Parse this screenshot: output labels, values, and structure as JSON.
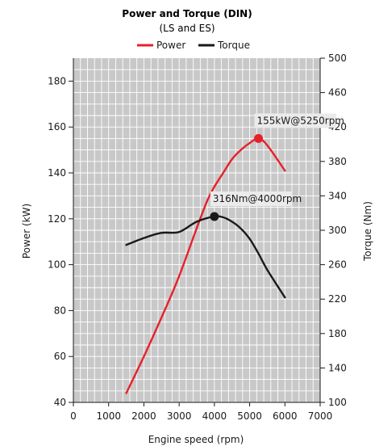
{
  "chart_data": {
    "type": "line",
    "title": "Power and Torque (DIN)",
    "subtitle": "(LS and ES)",
    "xlabel": "Engine speed (rpm)",
    "ylabel_left": "Power (kW)",
    "ylabel_right": "Torque (Nm)",
    "xlim": [
      0,
      7000
    ],
    "ylim_left": [
      40,
      190
    ],
    "ylim_right": [
      100,
      500
    ],
    "x_ticks": [
      0,
      1000,
      2000,
      3000,
      4000,
      5000,
      6000,
      7000
    ],
    "y_left_ticks": [
      40,
      60,
      80,
      100,
      120,
      140,
      160,
      180
    ],
    "y_right_ticks": [
      100,
      140,
      180,
      220,
      260,
      300,
      340,
      380,
      420,
      460,
      500
    ],
    "grid": true,
    "legend_position": "top-center",
    "series": [
      {
        "name": "Power",
        "axis": "left",
        "color": "#e8202a",
        "x": [
          1500,
          2000,
          2500,
          3000,
          3500,
          3800,
          4000,
          4250,
          4500,
          4750,
          5000,
          5250,
          5500,
          6000
        ],
        "y": [
          44,
          60,
          77,
          95,
          116,
          128,
          134,
          140,
          146,
          150,
          153,
          155,
          152,
          141
        ]
      },
      {
        "name": "Torque",
        "axis": "right",
        "color": "#1a1a1a",
        "x": [
          1500,
          2000,
          2500,
          3000,
          3500,
          4000,
          4250,
          4500,
          4750,
          5000,
          5250,
          5500,
          6000
        ],
        "y": [
          283,
          291,
          297,
          298,
          310,
          316,
          315,
          310,
          302,
          290,
          273,
          254,
          222
        ]
      }
    ],
    "annotations": [
      {
        "series": "Power",
        "x": 5250,
        "y": 155,
        "label": "155kW@5250rpm",
        "marker_color": "#e8202a"
      },
      {
        "series": "Torque",
        "x": 4000,
        "y": 316,
        "label": "316Nm@4000rpm",
        "marker_color": "#1a1a1a"
      }
    ]
  }
}
